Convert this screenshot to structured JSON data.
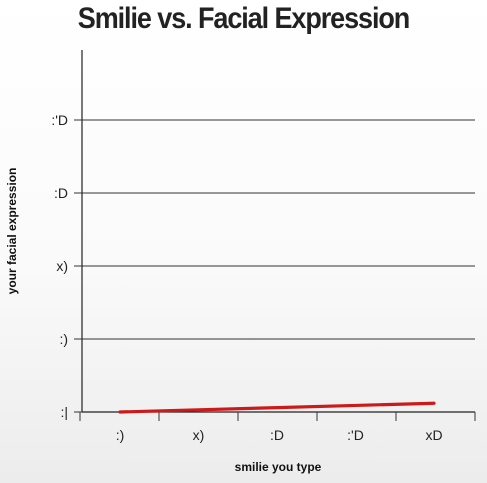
{
  "chart_data": {
    "type": "line",
    "title": "Smilie vs. Facial Expression",
    "xlabel": "smilie you type",
    "ylabel": "your facial expression",
    "categories": [
      ":)",
      "x)",
      ":D",
      ":'D",
      "xD"
    ],
    "yticks": [
      ":|",
      ":)",
      "x)",
      ":D",
      ":'D"
    ],
    "ylim": [
      0,
      5
    ],
    "series": [
      {
        "color": "#cc1a1a",
        "values": [
          0.0,
          0.03,
          0.06,
          0.09,
          0.12
        ]
      }
    ],
    "grid": true,
    "legend": "none"
  }
}
